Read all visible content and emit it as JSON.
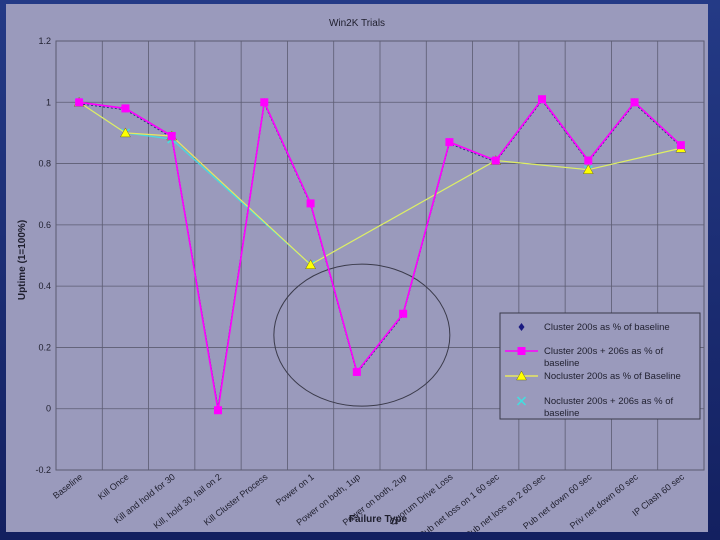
{
  "chart_data": {
    "type": "line",
    "title": "Win2K Trials",
    "xlabel": "Failure Type",
    "ylabel": "Uptime (1=100%)",
    "ylim": [
      -0.2,
      1.2
    ],
    "yticks": [
      -0.2,
      0,
      0.2,
      0.4,
      0.6,
      0.8,
      1,
      1.2
    ],
    "ytick_labels": [
      "-0.2",
      "0",
      "0.2",
      "0.4",
      "0.6",
      "0.8",
      "1",
      "1.2"
    ],
    "grid": true,
    "legend_position": "bottom-right",
    "categories": [
      "Baseline",
      "Kill Once",
      "Kill and hold for 30",
      "Kill, hold 30, fail on 2",
      "Kill Cluster Process",
      "Power on 1",
      "Power on both, 1up",
      "Power on both, 2up",
      "Quorum Drive Loss",
      "Pub net loss on 1 60 sec",
      "Pub net loss on 2 60 sec",
      "Pub net down 60 sec",
      "Priv net down 60 sec",
      "IP Clash 60 sec"
    ],
    "series": [
      {
        "name": "Cluster 200s as % of baseline",
        "color": "#1a1a80",
        "marker": "diamond",
        "values": [
          1.0,
          0.98,
          0.89,
          0.0,
          1.0,
          0.67,
          0.12,
          0.31,
          0.87,
          0.81,
          1.01,
          0.81,
          1.0,
          0.86
        ]
      },
      {
        "name": "Cluster 200s + 206s as % of baseline",
        "color": "#ff00ff",
        "marker": "square",
        "values": [
          1.0,
          0.98,
          0.89,
          -0.005,
          1.0,
          0.67,
          0.12,
          0.31,
          0.87,
          0.81,
          1.01,
          0.81,
          1.0,
          0.86
        ]
      },
      {
        "name": "Nocluster 200s as % of Baseline",
        "color": "#ffff00",
        "marker": "triangle",
        "values": [
          1.0,
          0.9,
          0.89,
          null,
          null,
          0.47,
          null,
          null,
          null,
          0.81,
          null,
          0.78,
          null,
          0.85
        ]
      },
      {
        "name": "Nocluster 200s + 206s as % of baseline",
        "color": "#40e0e0",
        "marker": "x",
        "values": [
          1.0,
          0.9,
          0.88,
          null,
          null,
          0.47,
          null,
          null,
          null,
          0.81,
          null,
          0.78,
          null,
          0.85
        ]
      }
    ]
  }
}
